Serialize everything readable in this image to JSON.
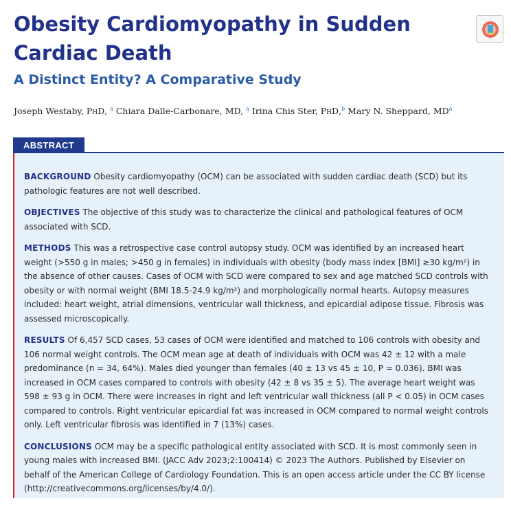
{
  "title": "Obesity Cardiomyopathy in Sudden Cardiac Death",
  "subtitle": "A Distinct Entity? A Comparative Study",
  "crossmark_icon": "crossmark-update-check-icon",
  "authors": [
    {
      "name": "Joseph Westaby, ",
      "degree": "PhD",
      "aff": "a",
      "sep": ", "
    },
    {
      "name": "Chiara Dalle-Carbonare, MD, ",
      "degree": "",
      "aff": "a",
      "sep": " "
    },
    {
      "name": "Irina Chis Ster, ",
      "degree": "PhD",
      "aff": "b",
      "sep": " "
    },
    {
      "name": "Mary N. Sheppard, MD",
      "degree": "",
      "aff": "a",
      "sep": ""
    }
  ],
  "abstract_label": "ABSTRACT",
  "abstract": {
    "background": {
      "label": "BACKGROUND",
      "text": "Obesity cardiomyopathy (OCM) can be associated with sudden cardiac death (SCD) but its pathologic features are not well described."
    },
    "objectives": {
      "label": "OBJECTIVES",
      "text": "The objective of this study was to characterize the clinical and pathological features of OCM associated with SCD."
    },
    "methods": {
      "label": "METHODS",
      "text": "This was a retrospective case control autopsy study. OCM was identified by an increased heart weight (>550 g in males; >450 g in females) in individuals with obesity (body mass index [BMI] ≥30 kg/m²) in the absence of other causes. Cases of OCM with SCD were compared to sex and age matched SCD controls with obesity or with normal weight (BMI 18.5-24.9 kg/m²) and morphologically normal hearts. Autopsy measures included: heart weight, atrial dimensions, ventricular wall thickness, and epicardial adipose tissue. Fibrosis was assessed microscopically."
    },
    "results": {
      "label": "RESULTS",
      "text": "Of 6,457 SCD cases, 53 cases of OCM were identified and matched to 106 controls with obesity and 106 normal weight controls. The OCM mean age at death of individuals with OCM was 42 ± 12 with a male predominance (n = 34, 64%). Males died younger than females (40 ± 13 vs 45 ± 10, P = 0.036). BMI was increased in OCM cases compared to controls with obesity (42 ± 8 vs 35 ± 5). The average heart weight was 598 ± 93 g in OCM. There were increases in right and left ventricular wall thickness (all P < 0.05) in OCM cases compared to controls. Right ventricular epicardial fat was increased in OCM compared to normal weight controls only. Left ventricular fibrosis was identified in 7 (13%) cases."
    },
    "conclusions": {
      "label": "CONCLUSIONS",
      "text": "OCM may be a specific pathological entity associated with SCD. It is most commonly seen in young males with increased BMI. (JACC Adv 2023;2:100414) © 2023 The Authors. Published by Elsevier on behalf of the American College of Cardiology Foundation. This is an open access article under the CC BY license (http://creativecommons.org/licenses/by/4.0/)."
    }
  }
}
